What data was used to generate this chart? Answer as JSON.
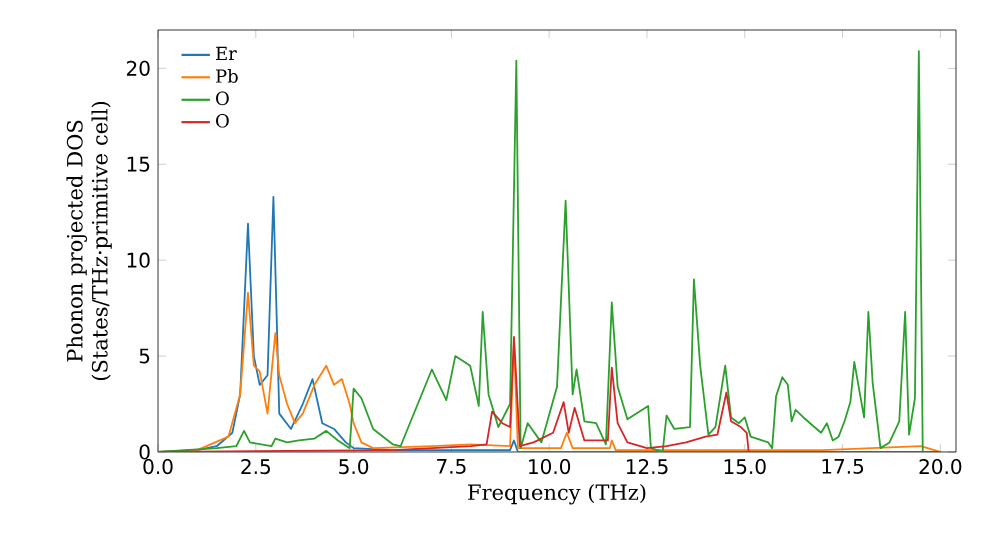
{
  "chart_data": {
    "type": "line",
    "xlabel": "Frequency (THz)",
    "ylabel": "Phonon projected DOS (States/THz·primitive cell)",
    "xlim": [
      0,
      20.4
    ],
    "ylim": [
      0,
      22
    ],
    "xticks": [
      {
        "value": 0,
        "label": "0.0"
      },
      2.5,
      {
        "value": 5,
        "label": "5.0"
      },
      7.5,
      {
        "value": 10,
        "label": "10.0"
      },
      12.5,
      {
        "value": 15,
        "label": "15.0"
      },
      17.5,
      {
        "value": 20,
        "label": "20.0"
      }
    ],
    "yticks": [
      0,
      5,
      10,
      15,
      20
    ],
    "legend": "top left",
    "grid": false,
    "marker": "none",
    "line_style": "solid",
    "series": [
      {
        "name": "Er",
        "color": "#1f77b4",
        "x": [
          0,
          1,
          1.5,
          1.9,
          2.1,
          2.3,
          2.45,
          2.6,
          2.8,
          2.95,
          3.1,
          3.4,
          3.7,
          3.95,
          4.2,
          4.5,
          4.8,
          5.0,
          6,
          9,
          9.1,
          9.2,
          20
        ],
        "values": [
          0,
          0.1,
          0.3,
          1.0,
          3,
          11.9,
          5,
          3.5,
          4,
          13.3,
          2,
          1.2,
          2.5,
          3.8,
          1.5,
          1.2,
          0.5,
          0.2,
          0.1,
          0.1,
          0.6,
          0,
          0
        ]
      },
      {
        "name": "Pb",
        "color": "#ff7f0e",
        "x": [
          0,
          1,
          1.8,
          2.1,
          2.3,
          2.45,
          2.6,
          2.8,
          3.0,
          3.1,
          3.3,
          3.5,
          3.7,
          4.0,
          4.3,
          4.5,
          4.7,
          4.9,
          5.0,
          5.2,
          5.5,
          7,
          8,
          9.0,
          9.1,
          9.2,
          10.3,
          10.45,
          10.6,
          11.55,
          11.6,
          11.7,
          17,
          19.5,
          20
        ],
        "values": [
          0,
          0.1,
          0.8,
          3,
          8.3,
          4.5,
          4.2,
          2,
          6.2,
          4,
          2.5,
          1.5,
          2,
          3.5,
          4.5,
          3.5,
          3.8,
          2.5,
          1.5,
          0.5,
          0.2,
          0.3,
          0.4,
          0.3,
          5.8,
          0.2,
          0.2,
          1.0,
          0.2,
          0.2,
          0.6,
          0.1,
          0.1,
          0.3,
          0
        ]
      },
      {
        "name": "O",
        "color": "#2ca02c",
        "x": [
          0,
          1.5,
          2.0,
          2.2,
          2.35,
          2.9,
          3.0,
          3.3,
          3.6,
          4.0,
          4.3,
          4.6,
          4.9,
          5.0,
          5.2,
          5.5,
          6.0,
          6.2,
          7.0,
          7.37,
          7.6,
          7.98,
          8.2,
          8.3,
          8.45,
          8.7,
          9.0,
          9.16,
          9.27,
          9.45,
          9.8,
          10.2,
          10.42,
          10.6,
          10.7,
          10.9,
          11.2,
          11.45,
          11.6,
          11.75,
          12.0,
          12.53,
          12.6,
          12.9,
          13.0,
          13.2,
          13.6,
          13.7,
          13.86,
          14.07,
          14.25,
          14.5,
          14.65,
          14.85,
          15.0,
          15.15,
          15.6,
          15.7,
          15.8,
          15.96,
          16.1,
          16.2,
          16.3,
          16.5,
          16.95,
          17.1,
          17.25,
          17.4,
          17.55,
          17.7,
          17.8,
          18.05,
          18.16,
          18.27,
          18.47,
          18.7,
          18.95,
          19.1,
          19.2,
          19.35,
          19.45,
          19.55,
          20
        ],
        "values": [
          0,
          0.2,
          0.3,
          1.1,
          0.5,
          0.3,
          0.7,
          0.5,
          0.6,
          0.7,
          1.1,
          0.6,
          0.2,
          3.3,
          2.8,
          1.2,
          0.4,
          0.3,
          4.3,
          2.7,
          5.0,
          4.5,
          2.4,
          7.3,
          3,
          1.3,
          2.5,
          20.4,
          0.2,
          1.5,
          0.5,
          3.4,
          13.1,
          3.0,
          4.3,
          1.6,
          1.5,
          0.4,
          7.8,
          3.4,
          1.7,
          2.4,
          0.2,
          0,
          1.9,
          1.2,
          1.3,
          9.0,
          4.5,
          0.9,
          1.3,
          4.5,
          1.8,
          1.5,
          1.8,
          0.8,
          0.5,
          0.2,
          2.9,
          3.9,
          3.5,
          1.6,
          2.2,
          1.8,
          1.0,
          1.5,
          0.6,
          0.8,
          1.6,
          2.6,
          4.7,
          1.8,
          7.3,
          3.6,
          0.2,
          0.5,
          1.6,
          7.3,
          0.9,
          2.8,
          20.9,
          0,
          0
        ]
      },
      {
        "name": "O",
        "color": "#d62728",
        "x": [
          0,
          6,
          7,
          8,
          8.4,
          8.54,
          8.8,
          9.0,
          9.1,
          9.25,
          9.6,
          10.1,
          10.37,
          10.5,
          10.65,
          10.9,
          11.5,
          11.6,
          11.75,
          12.0,
          12.5,
          13.0,
          13.5,
          14.0,
          14.3,
          14.53,
          14.65,
          14.9,
          15.05,
          15.1,
          20
        ],
        "values": [
          0,
          0.1,
          0.2,
          0.3,
          0.4,
          2.1,
          1.5,
          1.3,
          6.0,
          0.3,
          0.5,
          1.0,
          2.6,
          1.0,
          2.3,
          0.6,
          0.6,
          4.4,
          1.5,
          0.5,
          0.2,
          0.3,
          0.5,
          0.8,
          0.9,
          3.1,
          1.6,
          1.3,
          1.0,
          0,
          0
        ]
      }
    ]
  }
}
